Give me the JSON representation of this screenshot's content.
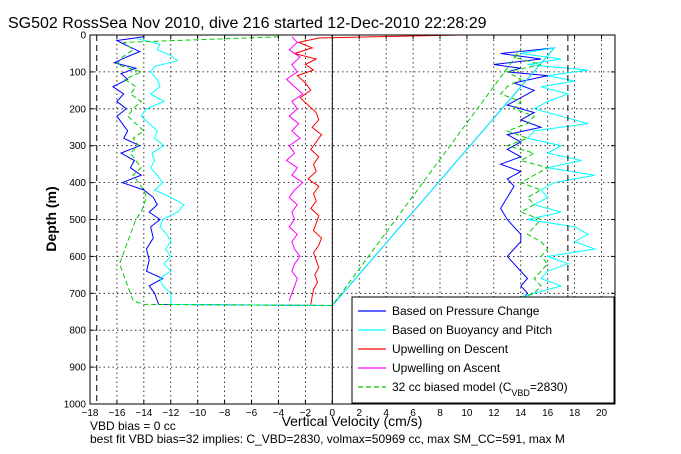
{
  "chart_data": {
    "type": "line",
    "title": "SG502 RossSea Nov 2010, dive 216 started 12-Dec-2010 22:28:29",
    "xlabel": "Vertical Velocity (cm/s)",
    "ylabel": "Depth (m)",
    "xlim": [
      -18,
      21
    ],
    "ylim": [
      1000,
      0
    ],
    "y_reversed": true,
    "grid": true,
    "x_ticks": [
      -18,
      -16,
      -14,
      -12,
      -10,
      -8,
      -6,
      -4,
      -2,
      0,
      2,
      4,
      6,
      8,
      10,
      12,
      14,
      16,
      18,
      20
    ],
    "y_ticks": [
      0,
      100,
      200,
      300,
      400,
      500,
      600,
      700,
      800,
      900,
      1000
    ],
    "legend_position": "bottom-right",
    "vertical_lines": [
      {
        "x": -17.5,
        "style": "dashed",
        "color": "#000000"
      },
      {
        "x": 17.5,
        "style": "dashed",
        "color": "#000000"
      },
      {
        "x": 0,
        "style": "solid",
        "color": "#000000"
      }
    ],
    "series": [
      {
        "name": "Based on Pressure Change",
        "color": "#0000ff",
        "style": "solid",
        "points": [
          [
            -14.0,
            5
          ],
          [
            -16.0,
            15
          ],
          [
            -15.2,
            30
          ],
          [
            -14.3,
            45
          ],
          [
            -15.3,
            60
          ],
          [
            -16.2,
            75
          ],
          [
            -14.6,
            90
          ],
          [
            -15.7,
            105
          ],
          [
            -15.2,
            120
          ],
          [
            -16.3,
            140
          ],
          [
            -15.5,
            160
          ],
          [
            -16.0,
            180
          ],
          [
            -15.3,
            200
          ],
          [
            -16.0,
            220
          ],
          [
            -15.6,
            240
          ],
          [
            -15.2,
            260
          ],
          [
            -15.5,
            280
          ],
          [
            -14.3,
            300
          ],
          [
            -15.7,
            320
          ],
          [
            -14.7,
            340
          ],
          [
            -15.0,
            360
          ],
          [
            -14.2,
            380
          ],
          [
            -15.6,
            400
          ],
          [
            -14.0,
            420
          ],
          [
            -13.3,
            440
          ],
          [
            -13.0,
            460
          ],
          [
            -13.6,
            480
          ],
          [
            -12.8,
            500
          ],
          [
            -13.5,
            520
          ],
          [
            -13.3,
            550
          ],
          [
            -13.8,
            580
          ],
          [
            -13.6,
            610
          ],
          [
            -13.8,
            640
          ],
          [
            -12.6,
            660
          ],
          [
            -13.6,
            680
          ],
          [
            -13.2,
            700
          ],
          [
            -12.9,
            730
          ],
          [
            0.0,
            733
          ],
          [
            16.5,
            35
          ],
          [
            12.5,
            50
          ],
          [
            15.5,
            65
          ],
          [
            12.0,
            80
          ],
          [
            14.0,
            90
          ],
          [
            13.0,
            100
          ],
          [
            16.0,
            110
          ],
          [
            13.5,
            130
          ],
          [
            15.0,
            150
          ],
          [
            14.0,
            170
          ],
          [
            13.0,
            190
          ],
          [
            15.0,
            210
          ],
          [
            14.0,
            230
          ],
          [
            15.5,
            250
          ],
          [
            13.0,
            270
          ],
          [
            14.0,
            290
          ],
          [
            13.0,
            310
          ],
          [
            14.0,
            330
          ],
          [
            12.5,
            350
          ],
          [
            14.0,
            370
          ],
          [
            13.0,
            390
          ],
          [
            13.5,
            410
          ],
          [
            13.0,
            440
          ],
          [
            12.5,
            470
          ],
          [
            13.0,
            500
          ],
          [
            13.5,
            520
          ],
          [
            14.0,
            540
          ],
          [
            14.0,
            560
          ],
          [
            13.5,
            580
          ],
          [
            13.0,
            600
          ],
          [
            13.5,
            620
          ],
          [
            14.0,
            640
          ],
          [
            14.5,
            660
          ],
          [
            14.0,
            680
          ],
          [
            14.5,
            700
          ],
          [
            14.0,
            720
          ]
        ]
      },
      {
        "name": "Based on Buoyancy and Pitch",
        "color": "#00ffff",
        "style": "solid",
        "points": [
          [
            -14.5,
            10
          ],
          [
            -12.8,
            25
          ],
          [
            -13.0,
            40
          ],
          [
            -12.0,
            55
          ],
          [
            -11.5,
            70
          ],
          [
            -13.2,
            85
          ],
          [
            -13.5,
            100
          ],
          [
            -13.0,
            120
          ],
          [
            -12.8,
            140
          ],
          [
            -13.5,
            160
          ],
          [
            -12.5,
            180
          ],
          [
            -13.8,
            200
          ],
          [
            -14.2,
            220
          ],
          [
            -13.6,
            240
          ],
          [
            -13.0,
            260
          ],
          [
            -13.2,
            280
          ],
          [
            -12.5,
            300
          ],
          [
            -13.4,
            320
          ],
          [
            -13.2,
            340
          ],
          [
            -13.5,
            360
          ],
          [
            -13.0,
            380
          ],
          [
            -12.6,
            400
          ],
          [
            -13.2,
            420
          ],
          [
            -12.0,
            440
          ],
          [
            -11.0,
            460
          ],
          [
            -11.5,
            480
          ],
          [
            -12.6,
            500
          ],
          [
            -12.8,
            520
          ],
          [
            -12.3,
            540
          ],
          [
            -12.0,
            560
          ],
          [
            -12.4,
            580
          ],
          [
            -12.0,
            600
          ],
          [
            -12.5,
            620
          ],
          [
            -12.0,
            640
          ],
          [
            -12.8,
            660
          ],
          [
            -12.6,
            680
          ],
          [
            -12.0,
            700
          ],
          [
            -12.0,
            730
          ],
          [
            0.0,
            733
          ],
          [
            16.5,
            35
          ],
          [
            14.0,
            50
          ],
          [
            17.0,
            65
          ],
          [
            14.5,
            80
          ],
          [
            19.0,
            95
          ],
          [
            16.0,
            110
          ],
          [
            18.0,
            125
          ],
          [
            15.5,
            140
          ],
          [
            17.5,
            160
          ],
          [
            16.0,
            180
          ],
          [
            15.0,
            200
          ],
          [
            17.0,
            220
          ],
          [
            19.0,
            240
          ],
          [
            15.0,
            260
          ],
          [
            14.5,
            280
          ],
          [
            17.0,
            300
          ],
          [
            16.0,
            320
          ],
          [
            18.5,
            340
          ],
          [
            16.0,
            360
          ],
          [
            19.5,
            380
          ],
          [
            16.5,
            400
          ],
          [
            15.5,
            420
          ],
          [
            16.0,
            440
          ],
          [
            15.0,
            460
          ],
          [
            17.0,
            480
          ],
          [
            14.5,
            500
          ],
          [
            18.0,
            520
          ],
          [
            19.0,
            540
          ],
          [
            18.0,
            560
          ],
          [
            19.5,
            580
          ],
          [
            16.0,
            600
          ],
          [
            17.5,
            620
          ],
          [
            16.0,
            640
          ],
          [
            15.5,
            660
          ],
          [
            17.0,
            680
          ],
          [
            15.0,
            700
          ],
          [
            13.0,
            720
          ]
        ]
      },
      {
        "name": "Upwelling on Descent",
        "color": "#ff0000",
        "style": "solid",
        "points": [
          [
            9.5,
            0
          ],
          [
            -1.0,
            8
          ],
          [
            -2.5,
            20
          ],
          [
            -1.5,
            35
          ],
          [
            -2.8,
            50
          ],
          [
            -1.2,
            65
          ],
          [
            -2.0,
            80
          ],
          [
            -1.4,
            95
          ],
          [
            -2.6,
            110
          ],
          [
            -2.0,
            130
          ],
          [
            -1.6,
            150
          ],
          [
            -2.4,
            170
          ],
          [
            -1.8,
            190
          ],
          [
            -1.2,
            210
          ],
          [
            -1.0,
            230
          ],
          [
            -1.5,
            250
          ],
          [
            -0.8,
            270
          ],
          [
            -1.2,
            290
          ],
          [
            -1.6,
            310
          ],
          [
            -1.0,
            330
          ],
          [
            -1.4,
            350
          ],
          [
            -1.2,
            370
          ],
          [
            -1.8,
            390
          ],
          [
            -1.0,
            410
          ],
          [
            -1.4,
            430
          ],
          [
            -1.2,
            450
          ],
          [
            -1.6,
            470
          ],
          [
            -1.0,
            490
          ],
          [
            -1.2,
            510
          ],
          [
            -1.4,
            530
          ],
          [
            -0.8,
            550
          ],
          [
            -1.0,
            570
          ],
          [
            -1.4,
            590
          ],
          [
            -1.2,
            610
          ],
          [
            -1.0,
            630
          ],
          [
            -1.3,
            650
          ],
          [
            -1.1,
            670
          ],
          [
            -1.4,
            690
          ],
          [
            -1.5,
            710
          ],
          [
            -1.6,
            730
          ]
        ]
      },
      {
        "name": "Upwelling on Ascent",
        "color": "#ff00ff",
        "style": "solid",
        "points": [
          [
            -3.0,
            5
          ],
          [
            -2.6,
            20
          ],
          [
            -3.2,
            40
          ],
          [
            -2.4,
            60
          ],
          [
            -3.0,
            80
          ],
          [
            -2.6,
            100
          ],
          [
            -3.4,
            120
          ],
          [
            -2.8,
            140
          ],
          [
            -2.2,
            160
          ],
          [
            -3.0,
            180
          ],
          [
            -2.6,
            200
          ],
          [
            -3.2,
            220
          ],
          [
            -2.5,
            240
          ],
          [
            -3.0,
            260
          ],
          [
            -2.4,
            280
          ],
          [
            -3.2,
            300
          ],
          [
            -2.8,
            320
          ],
          [
            -3.4,
            340
          ],
          [
            -2.6,
            360
          ],
          [
            -3.0,
            380
          ],
          [
            -2.2,
            400
          ],
          [
            -2.8,
            420
          ],
          [
            -3.2,
            440
          ],
          [
            -2.6,
            460
          ],
          [
            -3.0,
            480
          ],
          [
            -2.8,
            500
          ],
          [
            -3.2,
            520
          ],
          [
            -2.6,
            540
          ],
          [
            -3.0,
            560
          ],
          [
            -2.8,
            580
          ],
          [
            -2.4,
            600
          ],
          [
            -2.8,
            620
          ],
          [
            -3.0,
            640
          ],
          [
            -2.6,
            660
          ],
          [
            -2.8,
            680
          ],
          [
            -3.0,
            700
          ],
          [
            -3.2,
            720
          ]
        ]
      },
      {
        "name": "32 cc biased model (C<sub>VBD</sub>=2830)",
        "color": "#00cc00",
        "style": "dashed",
        "points": [
          [
            -4.0,
            5
          ],
          [
            -15.5,
            20
          ],
          [
            -14.8,
            40
          ],
          [
            -15.6,
            60
          ],
          [
            -16.0,
            80
          ],
          [
            -14.2,
            100
          ],
          [
            -15.4,
            120
          ],
          [
            -14.6,
            140
          ],
          [
            -15.0,
            160
          ],
          [
            -14.2,
            180
          ],
          [
            -14.8,
            200
          ],
          [
            -15.2,
            220
          ],
          [
            -14.6,
            240
          ],
          [
            -14.0,
            260
          ],
          [
            -14.8,
            280
          ],
          [
            -14.4,
            300
          ],
          [
            -15.0,
            320
          ],
          [
            -14.6,
            340
          ],
          [
            -14.2,
            360
          ],
          [
            -14.8,
            380
          ],
          [
            -14.4,
            400
          ],
          [
            -14.0,
            420
          ],
          [
            -13.8,
            440
          ],
          [
            -14.0,
            460
          ],
          [
            -14.2,
            480
          ],
          [
            -14.6,
            500
          ],
          [
            -14.8,
            520
          ],
          [
            -15.0,
            540
          ],
          [
            -15.2,
            560
          ],
          [
            -15.4,
            580
          ],
          [
            -15.6,
            600
          ],
          [
            -15.8,
            620
          ],
          [
            -15.6,
            640
          ],
          [
            -15.4,
            660
          ],
          [
            -15.2,
            680
          ],
          [
            -15.0,
            700
          ],
          [
            -14.8,
            720
          ],
          [
            -14.0,
            730
          ],
          [
            0.0,
            733
          ],
          [
            14.0,
            40
          ],
          [
            13.5,
            60
          ],
          [
            15.5,
            80
          ],
          [
            13.0,
            100
          ],
          [
            14.0,
            120
          ],
          [
            13.0,
            140
          ],
          [
            12.5,
            160
          ],
          [
            14.0,
            180
          ],
          [
            13.5,
            200
          ],
          [
            15.0,
            220
          ],
          [
            14.5,
            240
          ],
          [
            13.0,
            260
          ],
          [
            14.5,
            280
          ],
          [
            13.0,
            300
          ],
          [
            15.0,
            320
          ],
          [
            14.0,
            340
          ],
          [
            16.0,
            360
          ],
          [
            15.0,
            380
          ],
          [
            14.0,
            400
          ],
          [
            15.5,
            420
          ],
          [
            14.5,
            440
          ],
          [
            15.0,
            460
          ],
          [
            14.0,
            480
          ],
          [
            15.5,
            500
          ],
          [
            15.0,
            520
          ],
          [
            14.5,
            540
          ],
          [
            15.5,
            560
          ],
          [
            16.0,
            580
          ],
          [
            15.5,
            600
          ],
          [
            16.0,
            620
          ],
          [
            15.5,
            640
          ],
          [
            15.0,
            660
          ],
          [
            15.5,
            680
          ],
          [
            15.0,
            700
          ],
          [
            13.5,
            720
          ]
        ]
      }
    ]
  },
  "annotations": {
    "line1": "VBD bias = 0 cc",
    "line2": "best fit VBD bias=32 implies: C_VBD=2830, volmax=50969 cc, max SM_CC=591, max M"
  }
}
